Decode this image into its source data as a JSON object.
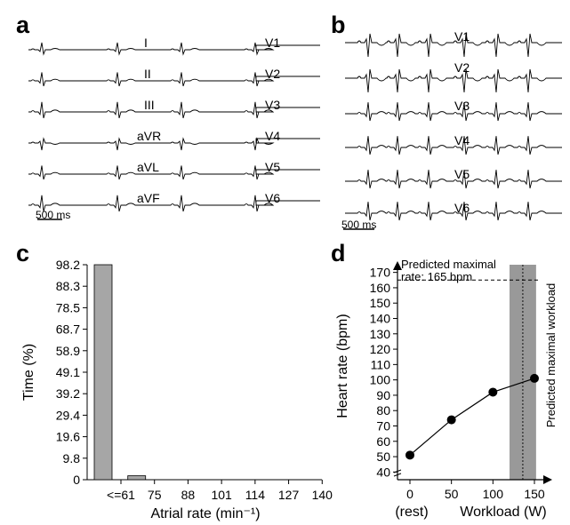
{
  "panels": {
    "a": "a",
    "b": "b",
    "c": "c",
    "d": "d"
  },
  "ecg_a": {
    "left_leads": [
      "I",
      "II",
      "III",
      "aVR",
      "aVL",
      "aVF"
    ],
    "right_leads": [
      "V1",
      "V2",
      "V3",
      "V4",
      "V5",
      "V6"
    ],
    "scale_label": "500 ms"
  },
  "ecg_b": {
    "leads": [
      "V1",
      "V2",
      "V3",
      "V4",
      "V5",
      "V6"
    ],
    "scale_label": "500 ms"
  },
  "chart_data": [
    {
      "panel": "c",
      "type": "bar",
      "categories": [
        "<=61",
        "75",
        "88",
        "101",
        "114",
        "127",
        "140"
      ],
      "values": [
        98.2,
        1.8,
        0,
        0,
        0,
        0,
        0
      ],
      "xlabel": "Atrial rate (min⁻¹)",
      "ylabel": "Time (%)",
      "yticks": [
        "98.2",
        "88.3",
        "78.5",
        "68.7",
        "58.9",
        "49.1",
        "39.2",
        "29.4",
        "19.6",
        "9.8",
        "0"
      ],
      "ylim": [
        0,
        98.2
      ],
      "bar_color": "#a6a6a6"
    },
    {
      "panel": "d",
      "type": "line",
      "x": [
        0,
        50,
        100,
        150
      ],
      "y": [
        51,
        74,
        92,
        101
      ],
      "xticks": [
        "0",
        "50",
        "100",
        "150"
      ],
      "x_sublabel": "(rest)",
      "yticks": [
        "40",
        "50",
        "60",
        "70",
        "80",
        "90",
        "100",
        "110",
        "120",
        "130",
        "140",
        "150",
        "160",
        "170"
      ],
      "xlabel": "Workload (W)",
      "ylabel": "Heart rate (bpm)",
      "xlim": [
        -15,
        165
      ],
      "ylim": [
        35,
        175
      ],
      "predicted_rate": 165,
      "predicted_rate_label_line1": "Predicted maximal",
      "predicted_rate_label_line2": "rate: 165 bpm",
      "predicted_workload": 136,
      "predicted_workload_band": [
        120,
        152
      ],
      "predicted_workload_label": "Predicted maximal workload",
      "band_color": "#999999"
    }
  ]
}
